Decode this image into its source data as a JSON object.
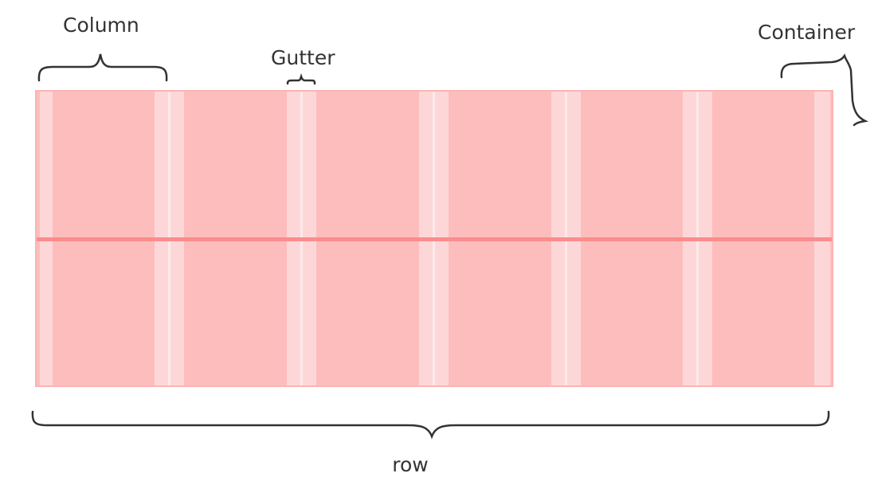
{
  "labels": {
    "column": "Column",
    "gutter": "Gutter",
    "container": "Container",
    "row": "row"
  },
  "grid": {
    "columns": 6,
    "rows": 2
  },
  "colors": {
    "cell": "#fdbdbd",
    "gutter": "#fdd7d7",
    "stripe": "#fde9e9",
    "divider": "#fb8d8d",
    "border": "#fbb4b4",
    "brace": "#333333"
  }
}
